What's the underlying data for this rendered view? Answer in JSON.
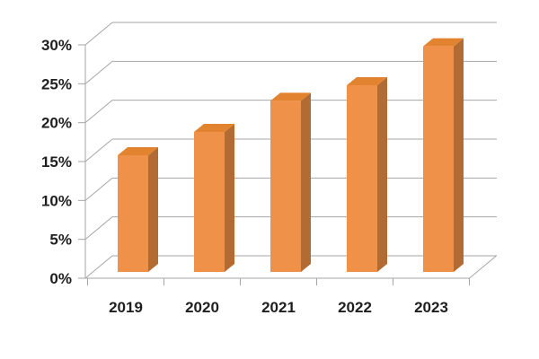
{
  "chart_data": {
    "type": "bar",
    "style": "3d-column",
    "title": "",
    "xlabel": "",
    "ylabel": "",
    "categories": [
      "2019",
      "2020",
      "2021",
      "2022",
      "2023"
    ],
    "series": [
      {
        "name": "",
        "values": [
          15,
          18,
          22,
          24,
          29
        ]
      }
    ],
    "y_ticks": [
      {
        "value": 0,
        "label": "0%"
      },
      {
        "value": 5,
        "label": "5%"
      },
      {
        "value": 10,
        "label": "10%"
      },
      {
        "value": 15,
        "label": "15%"
      },
      {
        "value": 20,
        "label": "20%"
      },
      {
        "value": 25,
        "label": "25%"
      },
      {
        "value": 30,
        "label": "30%"
      }
    ],
    "ylim": [
      0,
      30
    ],
    "value_format": "percent",
    "grid": true,
    "legend": false,
    "colors": {
      "bar_front": "#F0914A",
      "bar_top": "#E2832F",
      "bar_side": "#B26C33",
      "gridline": "#A6A6A6",
      "axis": "#A6A6A6",
      "label": "#1F1F1F",
      "background": "#FFFFFF"
    }
  }
}
